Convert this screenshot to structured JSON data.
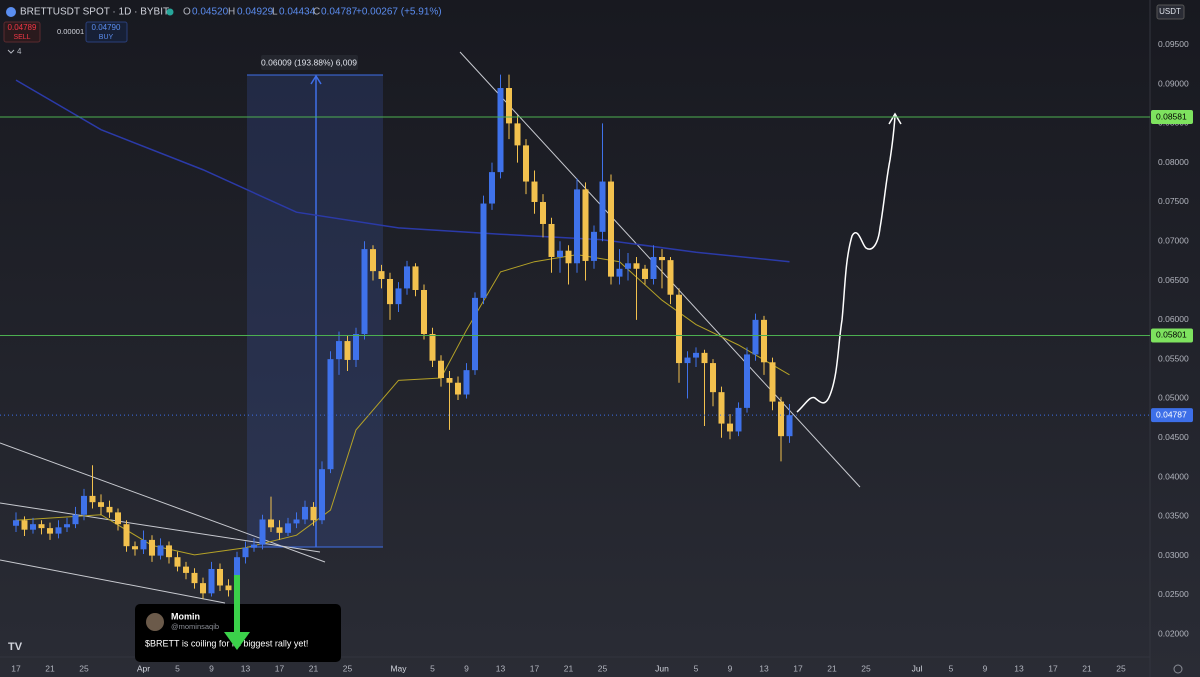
{
  "header": {
    "symbol": "BRETTUSDT SPOT · 1D · BYBIT",
    "o_label": "O",
    "o": "0.04520",
    "h_label": "H",
    "h": "0.04929",
    "l_label": "L",
    "l": "0.04434",
    "c_label": "C",
    "c": "0.04787",
    "change": "+0.00267 (+5.91%)"
  },
  "order_panel": {
    "sell_price": "0.04789",
    "sell": "SELL",
    "spread": "0.00001",
    "buy_price": "0.04790",
    "buy": "BUY",
    "indicators": "4"
  },
  "currency": "USDT",
  "measure_label": "0.06009 (193.88%) 6,009",
  "tweet": {
    "name": "Momin",
    "handle": "@mominsaqib",
    "text": "$BRETT is coiling for its biggest rally yet!"
  },
  "chart_data": {
    "type": "candlestick",
    "up_color": "#3f72ea",
    "down_color": "#f2c14e",
    "ylim": [
      0.0171,
      0.1007
    ],
    "yticks": [
      {
        "value": 0.095,
        "label": "0.09500"
      },
      {
        "value": 0.09,
        "label": "0.09000"
      },
      {
        "value": 0.085,
        "label": "0.08500"
      },
      {
        "value": 0.08,
        "label": "0.08000"
      },
      {
        "value": 0.075,
        "label": "0.07500"
      },
      {
        "value": 0.07,
        "label": "0.07000"
      },
      {
        "value": 0.065,
        "label": "0.06500"
      },
      {
        "value": 0.06,
        "label": "0.06000"
      },
      {
        "value": 0.055,
        "label": "0.05500"
      },
      {
        "value": 0.05,
        "label": "0.05000"
      },
      {
        "value": 0.045,
        "label": "0.04500"
      },
      {
        "value": 0.04,
        "label": "0.04000"
      },
      {
        "value": 0.035,
        "label": "0.03500"
      },
      {
        "value": 0.03,
        "label": "0.03000"
      },
      {
        "value": 0.025,
        "label": "0.02500"
      },
      {
        "value": 0.02,
        "label": "0.02000"
      }
    ],
    "xticks": [
      {
        "value": 0,
        "label": "17"
      },
      {
        "value": 4,
        "label": "21"
      },
      {
        "value": 8,
        "label": "25"
      },
      {
        "value": 15,
        "label": "Apr"
      },
      {
        "value": 19,
        "label": "5"
      },
      {
        "value": 23,
        "label": "9"
      },
      {
        "value": 27,
        "label": "13"
      },
      {
        "value": 31,
        "label": "17"
      },
      {
        "value": 35,
        "label": "21"
      },
      {
        "value": 39,
        "label": "25"
      },
      {
        "value": 45,
        "label": "May"
      },
      {
        "value": 49,
        "label": "5"
      },
      {
        "value": 53,
        "label": "9"
      },
      {
        "value": 57,
        "label": "13"
      },
      {
        "value": 61,
        "label": "17"
      },
      {
        "value": 65,
        "label": "21"
      },
      {
        "value": 69,
        "label": "25"
      },
      {
        "value": 76,
        "label": "Jun"
      },
      {
        "value": 80,
        "label": "5"
      },
      {
        "value": 84,
        "label": "9"
      },
      {
        "value": 88,
        "label": "13"
      },
      {
        "value": 92,
        "label": "17"
      },
      {
        "value": 96,
        "label": "21"
      },
      {
        "value": 100,
        "label": "25"
      },
      {
        "value": 106,
        "label": "Jul"
      },
      {
        "value": 110,
        "label": "5"
      },
      {
        "value": 114,
        "label": "9"
      },
      {
        "value": 118,
        "label": "13"
      },
      {
        "value": 122,
        "label": "17"
      },
      {
        "value": 126,
        "label": "21"
      },
      {
        "value": 130,
        "label": "25"
      }
    ],
    "candles": [
      [
        0.0338,
        0.0355,
        0.033,
        0.0345
      ],
      [
        0.0345,
        0.035,
        0.0325,
        0.0333
      ],
      [
        0.0333,
        0.0348,
        0.0328,
        0.034
      ],
      [
        0.034,
        0.0345,
        0.0327,
        0.0335
      ],
      [
        0.0335,
        0.0342,
        0.032,
        0.0328
      ],
      [
        0.0328,
        0.0345,
        0.0322,
        0.0336
      ],
      [
        0.0336,
        0.0348,
        0.033,
        0.034
      ],
      [
        0.034,
        0.0362,
        0.0335,
        0.0352
      ],
      [
        0.0352,
        0.0385,
        0.0345,
        0.0376
      ],
      [
        0.0376,
        0.0415,
        0.036,
        0.0368
      ],
      [
        0.0368,
        0.0378,
        0.0352,
        0.0362
      ],
      [
        0.0362,
        0.037,
        0.0348,
        0.0355
      ],
      [
        0.0355,
        0.036,
        0.0332,
        0.034
      ],
      [
        0.034,
        0.0345,
        0.0305,
        0.0312
      ],
      [
        0.0312,
        0.0318,
        0.03,
        0.0308
      ],
      [
        0.0308,
        0.0332,
        0.0302,
        0.032
      ],
      [
        0.032,
        0.0326,
        0.0292,
        0.03
      ],
      [
        0.03,
        0.0322,
        0.0295,
        0.0313
      ],
      [
        0.0313,
        0.0318,
        0.029,
        0.0298
      ],
      [
        0.0298,
        0.0305,
        0.028,
        0.0286
      ],
      [
        0.0286,
        0.0292,
        0.027,
        0.0278
      ],
      [
        0.0278,
        0.0284,
        0.0258,
        0.0265
      ],
      [
        0.0265,
        0.0272,
        0.0245,
        0.0252
      ],
      [
        0.0252,
        0.0292,
        0.0248,
        0.0283
      ],
      [
        0.0283,
        0.029,
        0.0255,
        0.0262
      ],
      [
        0.0262,
        0.027,
        0.0248,
        0.0256
      ],
      [
        0.0256,
        0.0305,
        0.025,
        0.0298
      ],
      [
        0.0298,
        0.0318,
        0.029,
        0.031
      ],
      [
        0.031,
        0.0322,
        0.0305,
        0.0314
      ],
      [
        0.0314,
        0.0352,
        0.0308,
        0.0346
      ],
      [
        0.0346,
        0.0375,
        0.033,
        0.0336
      ],
      [
        0.0336,
        0.0345,
        0.032,
        0.0329
      ],
      [
        0.0329,
        0.0348,
        0.0325,
        0.0341
      ],
      [
        0.0341,
        0.0355,
        0.0335,
        0.0346
      ],
      [
        0.0346,
        0.037,
        0.034,
        0.0362
      ],
      [
        0.0362,
        0.0368,
        0.0338,
        0.0345
      ],
      [
        0.0345,
        0.042,
        0.034,
        0.041
      ],
      [
        0.041,
        0.056,
        0.0405,
        0.055
      ],
      [
        0.055,
        0.0585,
        0.053,
        0.0573
      ],
      [
        0.0573,
        0.058,
        0.0535,
        0.0549
      ],
      [
        0.0549,
        0.059,
        0.054,
        0.0582
      ],
      [
        0.0582,
        0.07,
        0.0575,
        0.069
      ],
      [
        0.069,
        0.0695,
        0.065,
        0.0662
      ],
      [
        0.0662,
        0.067,
        0.064,
        0.0652
      ],
      [
        0.0652,
        0.066,
        0.06,
        0.062
      ],
      [
        0.062,
        0.0648,
        0.061,
        0.064
      ],
      [
        0.064,
        0.0675,
        0.0632,
        0.0668
      ],
      [
        0.0668,
        0.0672,
        0.063,
        0.0638
      ],
      [
        0.0638,
        0.0645,
        0.0575,
        0.0582
      ],
      [
        0.0582,
        0.059,
        0.054,
        0.0548
      ],
      [
        0.0548,
        0.0555,
        0.0515,
        0.0526
      ],
      [
        0.0526,
        0.0535,
        0.046,
        0.052
      ],
      [
        0.052,
        0.0528,
        0.0498,
        0.0505
      ],
      [
        0.0505,
        0.0545,
        0.05,
        0.0536
      ],
      [
        0.0536,
        0.0635,
        0.053,
        0.0628
      ],
      [
        0.0628,
        0.0758,
        0.062,
        0.0748
      ],
      [
        0.0748,
        0.08,
        0.074,
        0.0788
      ],
      [
        0.0788,
        0.0912,
        0.078,
        0.0895
      ],
      [
        0.0895,
        0.0912,
        0.083,
        0.085
      ],
      [
        0.085,
        0.086,
        0.08,
        0.0822
      ],
      [
        0.0822,
        0.083,
        0.076,
        0.0776
      ],
      [
        0.0776,
        0.079,
        0.0735,
        0.075
      ],
      [
        0.075,
        0.076,
        0.0705,
        0.0722
      ],
      [
        0.0722,
        0.073,
        0.066,
        0.068
      ],
      [
        0.068,
        0.07,
        0.066,
        0.0688
      ],
      [
        0.0688,
        0.0695,
        0.0645,
        0.0672
      ],
      [
        0.0672,
        0.078,
        0.066,
        0.0766
      ],
      [
        0.0766,
        0.0775,
        0.065,
        0.0675
      ],
      [
        0.0675,
        0.072,
        0.0665,
        0.0712
      ],
      [
        0.0712,
        0.085,
        0.07,
        0.0776
      ],
      [
        0.0776,
        0.0785,
        0.0645,
        0.0655
      ],
      [
        0.0655,
        0.069,
        0.0645,
        0.0665
      ],
      [
        0.0665,
        0.0685,
        0.065,
        0.0672
      ],
      [
        0.0672,
        0.068,
        0.06,
        0.0665
      ],
      [
        0.0665,
        0.067,
        0.0645,
        0.0652
      ],
      [
        0.0652,
        0.0695,
        0.0645,
        0.068
      ],
      [
        0.068,
        0.069,
        0.064,
        0.0676
      ],
      [
        0.0676,
        0.068,
        0.062,
        0.0632
      ],
      [
        0.0632,
        0.064,
        0.052,
        0.0545
      ],
      [
        0.0545,
        0.056,
        0.05,
        0.0552
      ],
      [
        0.0552,
        0.0565,
        0.054,
        0.0558
      ],
      [
        0.0558,
        0.0562,
        0.0465,
        0.0545
      ],
      [
        0.0545,
        0.055,
        0.049,
        0.0508
      ],
      [
        0.0508,
        0.0515,
        0.045,
        0.0468
      ],
      [
        0.0468,
        0.048,
        0.0448,
        0.0458
      ],
      [
        0.0458,
        0.0495,
        0.0452,
        0.0488
      ],
      [
        0.0488,
        0.0565,
        0.0482,
        0.0556
      ],
      [
        0.0556,
        0.0608,
        0.0548,
        0.06
      ],
      [
        0.06,
        0.0605,
        0.053,
        0.0546
      ],
      [
        0.0546,
        0.0552,
        0.0485,
        0.0496
      ],
      [
        0.0496,
        0.0502,
        0.042,
        0.0452
      ],
      [
        0.0452,
        0.04929,
        0.04434,
        0.04787
      ]
    ],
    "ma_slow": {
      "color": "#2b3aa8",
      "x": [
        0,
        10,
        22,
        33,
        45,
        57,
        69,
        80,
        91
      ],
      "values": [
        0.0905,
        0.0842,
        0.0791,
        0.0737,
        0.0717,
        0.0709,
        0.0702,
        0.0686,
        0.0674
      ]
    },
    "ma_fast": {
      "color": "#b5a227",
      "x": [
        0,
        10,
        16,
        21,
        27,
        33,
        37,
        40,
        45,
        50,
        53,
        57,
        61,
        66,
        71,
        76,
        80,
        85,
        91
      ],
      "values": [
        0.0345,
        0.0352,
        0.0313,
        0.0301,
        0.031,
        0.0326,
        0.0358,
        0.046,
        0.0523,
        0.0526,
        0.0587,
        0.0661,
        0.0674,
        0.0683,
        0.0674,
        0.0625,
        0.0594,
        0.0568,
        0.053
      ]
    },
    "levels": [
      {
        "value": 0.08581,
        "color": "#4caf50"
      },
      {
        "value": 0.05801,
        "color": "#4caf50"
      }
    ],
    "last_price": {
      "value": 0.04787,
      "color": "#3d6fe8"
    }
  }
}
